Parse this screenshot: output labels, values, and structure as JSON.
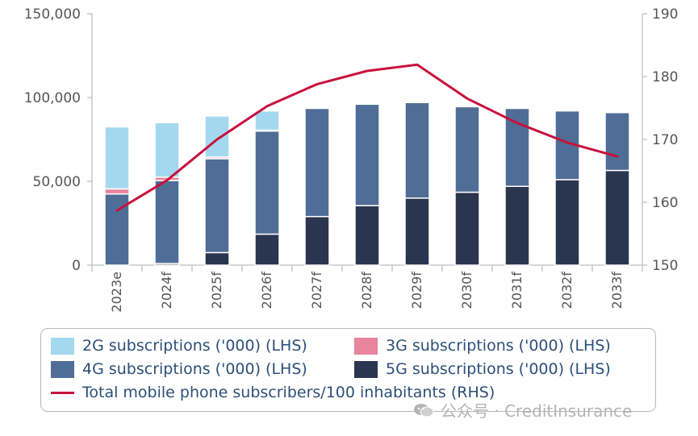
{
  "chart_data": {
    "type": "bar",
    "stacked": true,
    "categories": [
      "2023e",
      "2024f",
      "2025f",
      "2026f",
      "2027f",
      "2028f",
      "2029f",
      "2030f",
      "2031f",
      "2032f",
      "2033f"
    ],
    "series": [
      {
        "name": "5G subscriptions ('000) (LHS)",
        "color": "#2a3550",
        "axis": "left",
        "values": [
          0,
          1000,
          7500,
          18500,
          29000,
          35500,
          40000,
          43500,
          47000,
          51000,
          56500
        ]
      },
      {
        "name": "4G subscriptions ('000) (LHS)",
        "color": "#4f6d96",
        "axis": "left",
        "values": [
          42500,
          49500,
          56000,
          61500,
          64500,
          60500,
          57000,
          51000,
          46500,
          41000,
          34500
        ]
      },
      {
        "name": "3G subscriptions ('000) (LHS)",
        "color": "#e8849c",
        "axis": "left",
        "values": [
          3000,
          2000,
          1000,
          500,
          0,
          0,
          0,
          0,
          0,
          0,
          0
        ]
      },
      {
        "name": "2G subscriptions ('000) (LHS)",
        "color": "#a4d8ef",
        "axis": "left",
        "values": [
          37000,
          32500,
          24500,
          11500,
          0,
          0,
          0,
          0,
          0,
          0,
          0
        ]
      }
    ],
    "line": {
      "name": "Total mobile phone subscribers/100 inhabitants (RHS)",
      "color": "#c8103e",
      "axis": "right",
      "values": [
        158.7,
        163.5,
        170.0,
        175.3,
        178.8,
        180.9,
        181.9,
        176.5,
        172.6,
        169.5,
        167.3
      ]
    },
    "ylim_left": [
      0,
      150000
    ],
    "yticks_left": [
      "0",
      "50,000",
      "100,000",
      "150,000"
    ],
    "ylim_right": [
      150,
      190
    ],
    "yticks_right": [
      "150",
      "160",
      "170",
      "180",
      "190"
    ],
    "legend_placement": "bottom"
  },
  "legend": {
    "items": [
      {
        "label": "2G subscriptions ('000) (LHS)",
        "color": "#a4d8ef",
        "kind": "box"
      },
      {
        "label": "3G subscriptions ('000) (LHS)",
        "color": "#e8849c",
        "kind": "box"
      },
      {
        "label": "4G subscriptions ('000) (LHS)",
        "color": "#4f6d96",
        "kind": "box"
      },
      {
        "label": "5G subscriptions ('000) (LHS)",
        "color": "#2a3550",
        "kind": "box"
      },
      {
        "label": "Total mobile phone subscribers/100 inhabitants (RHS)",
        "color": "#c8103e",
        "kind": "line"
      }
    ]
  },
  "watermark": {
    "text": "公众号 · CreditInsurance",
    "icon": "wechat-icon"
  }
}
